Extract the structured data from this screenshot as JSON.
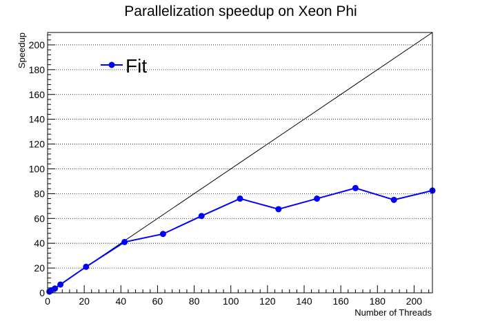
{
  "chart_data": {
    "type": "line",
    "title": "Parallelization speedup on Xeon Phi",
    "xlabel": "Number of Threads",
    "ylabel": "Speedup",
    "xlim": [
      0,
      210
    ],
    "ylim": [
      0,
      210
    ],
    "x_ticks": [
      0,
      20,
      40,
      60,
      80,
      100,
      120,
      140,
      160,
      180,
      200
    ],
    "y_ticks": [
      0,
      20,
      40,
      60,
      80,
      100,
      120,
      140,
      160,
      180,
      200
    ],
    "grid": {
      "x": false,
      "y": true,
      "style": "dotted"
    },
    "legend_position": "top-left",
    "reference_line": {
      "from": [
        0,
        0
      ],
      "to": [
        210,
        210
      ],
      "color": "#000000"
    },
    "series": [
      {
        "name": "Fit",
        "color": "#0000ff",
        "marker": "circle",
        "x": [
          1,
          2,
          4,
          7,
          21,
          42,
          63,
          84,
          105,
          126,
          147,
          168,
          189,
          210
        ],
        "y": [
          1,
          2,
          3.5,
          6.7,
          21,
          41,
          47.5,
          62,
          76,
          67.5,
          76,
          84.5,
          75,
          82.5
        ]
      }
    ]
  }
}
